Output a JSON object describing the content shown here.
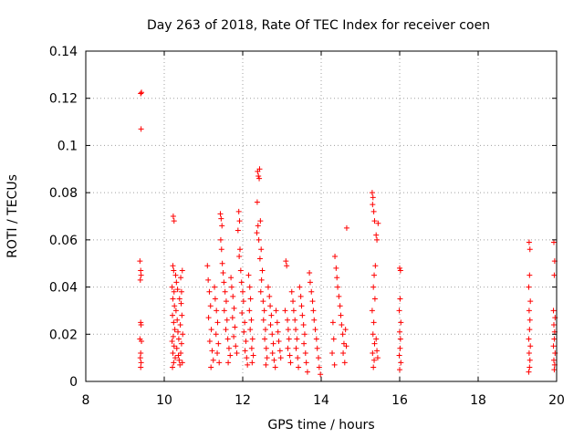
{
  "chart_data": {
    "type": "scatter",
    "title": "Day 263 of 2018, Rate Of TEC Index for receiver coen",
    "xlabel": "GPS time / hours",
    "ylabel": "ROTI / TECUs",
    "xlim": [
      8,
      20
    ],
    "ylim": [
      0,
      0.14
    ],
    "xticks": [
      "8",
      "10",
      "12",
      "14",
      "16",
      "18",
      "20"
    ],
    "yticks": [
      "0",
      "0.02",
      "0.04",
      "0.06",
      "0.08",
      "0.1",
      "0.12",
      "0.14"
    ],
    "grid": true,
    "marker": "+",
    "color": "#ff0000",
    "series": [
      {
        "points": [
          [
            9.4,
            0.122
          ],
          [
            9.42,
            0.1225
          ],
          [
            9.41,
            0.107
          ],
          [
            9.38,
            0.051
          ],
          [
            9.4,
            0.047
          ],
          [
            9.41,
            0.045
          ],
          [
            9.39,
            0.043
          ],
          [
            9.4,
            0.025
          ],
          [
            9.41,
            0.024
          ],
          [
            9.38,
            0.018
          ],
          [
            9.42,
            0.017
          ],
          [
            9.4,
            0.012
          ],
          [
            9.39,
            0.01
          ],
          [
            9.41,
            0.008
          ],
          [
            9.4,
            0.006
          ],
          [
            10.23,
            0.07
          ],
          [
            10.25,
            0.068
          ],
          [
            10.22,
            0.049
          ],
          [
            10.24,
            0.047
          ],
          [
            10.2,
            0.04
          ],
          [
            10.25,
            0.038
          ],
          [
            10.22,
            0.035
          ],
          [
            10.26,
            0.032
          ],
          [
            10.21,
            0.028
          ],
          [
            10.24,
            0.025
          ],
          [
            10.27,
            0.022
          ],
          [
            10.23,
            0.019
          ],
          [
            10.2,
            0.017
          ],
          [
            10.25,
            0.015
          ],
          [
            10.22,
            0.012
          ],
          [
            10.28,
            0.01
          ],
          [
            10.24,
            0.008
          ],
          [
            10.21,
            0.006
          ],
          [
            10.3,
            0.03
          ],
          [
            10.33,
            0.026
          ],
          [
            10.35,
            0.021
          ],
          [
            10.37,
            0.018
          ],
          [
            10.32,
            0.014
          ],
          [
            10.36,
            0.011
          ],
          [
            10.38,
            0.009
          ],
          [
            10.4,
            0.007
          ],
          [
            10.42,
            0.044
          ],
          [
            10.44,
            0.038
          ],
          [
            10.46,
            0.047
          ],
          [
            10.43,
            0.033
          ],
          [
            10.45,
            0.028
          ],
          [
            10.41,
            0.024
          ],
          [
            10.47,
            0.02
          ],
          [
            10.44,
            0.016
          ],
          [
            10.42,
            0.012
          ],
          [
            10.46,
            0.008
          ],
          [
            10.39,
            0.035
          ],
          [
            10.31,
            0.042
          ],
          [
            10.29,
            0.045
          ],
          [
            10.34,
            0.039
          ],
          [
            11.1,
            0.049
          ],
          [
            11.12,
            0.043
          ],
          [
            11.15,
            0.038
          ],
          [
            11.18,
            0.032
          ],
          [
            11.13,
            0.027
          ],
          [
            11.2,
            0.022
          ],
          [
            11.16,
            0.017
          ],
          [
            11.22,
            0.013
          ],
          [
            11.25,
            0.009
          ],
          [
            11.19,
            0.006
          ],
          [
            11.28,
            0.04
          ],
          [
            11.3,
            0.035
          ],
          [
            11.33,
            0.03
          ],
          [
            11.36,
            0.025
          ],
          [
            11.32,
            0.02
          ],
          [
            11.38,
            0.016
          ],
          [
            11.35,
            0.012
          ],
          [
            11.4,
            0.008
          ],
          [
            11.43,
            0.071
          ],
          [
            11.45,
            0.069
          ],
          [
            11.47,
            0.066
          ],
          [
            11.44,
            0.06
          ],
          [
            11.46,
            0.056
          ],
          [
            11.48,
            0.05
          ],
          [
            11.5,
            0.046
          ],
          [
            11.52,
            0.042
          ],
          [
            11.55,
            0.038
          ],
          [
            11.58,
            0.034
          ],
          [
            11.53,
            0.03
          ],
          [
            11.6,
            0.026
          ],
          [
            11.57,
            0.022
          ],
          [
            11.62,
            0.018
          ],
          [
            11.65,
            0.014
          ],
          [
            11.68,
            0.011
          ],
          [
            11.63,
            0.008
          ],
          [
            11.7,
            0.044
          ],
          [
            11.72,
            0.04
          ],
          [
            11.75,
            0.036
          ],
          [
            11.78,
            0.031
          ],
          [
            11.74,
            0.027
          ],
          [
            11.8,
            0.023
          ],
          [
            11.77,
            0.019
          ],
          [
            11.82,
            0.015
          ],
          [
            11.85,
            0.012
          ],
          [
            11.9,
            0.072
          ],
          [
            11.92,
            0.068
          ],
          [
            11.88,
            0.064
          ],
          [
            11.93,
            0.056
          ],
          [
            11.91,
            0.053
          ],
          [
            11.95,
            0.047
          ],
          [
            11.97,
            0.042
          ],
          [
            12.0,
            0.038
          ],
          [
            12.02,
            0.034
          ],
          [
            11.98,
            0.029
          ],
          [
            12.05,
            0.025
          ],
          [
            12.03,
            0.021
          ],
          [
            12.08,
            0.017
          ],
          [
            12.06,
            0.013
          ],
          [
            12.1,
            0.01
          ],
          [
            12.12,
            0.007
          ],
          [
            12.15,
            0.045
          ],
          [
            12.18,
            0.04
          ],
          [
            12.2,
            0.035
          ],
          [
            12.17,
            0.03
          ],
          [
            12.22,
            0.026
          ],
          [
            12.19,
            0.022
          ],
          [
            12.25,
            0.018
          ],
          [
            12.23,
            0.014
          ],
          [
            12.27,
            0.011
          ],
          [
            12.24,
            0.008
          ],
          [
            12.38,
            0.089
          ],
          [
            12.4,
            0.087
          ],
          [
            12.43,
            0.09
          ],
          [
            12.42,
            0.086
          ],
          [
            12.37,
            0.076
          ],
          [
            12.39,
            0.066
          ],
          [
            12.36,
            0.063
          ],
          [
            12.41,
            0.06
          ],
          [
            12.45,
            0.068
          ],
          [
            12.47,
            0.056
          ],
          [
            12.44,
            0.052
          ],
          [
            12.5,
            0.047
          ],
          [
            12.48,
            0.043
          ],
          [
            12.46,
            0.038
          ],
          [
            12.52,
            0.034
          ],
          [
            12.55,
            0.03
          ],
          [
            12.53,
            0.026
          ],
          [
            12.58,
            0.022
          ],
          [
            12.56,
            0.018
          ],
          [
            12.6,
            0.014
          ],
          [
            12.62,
            0.01
          ],
          [
            12.59,
            0.007
          ],
          [
            12.65,
            0.04
          ],
          [
            12.68,
            0.036
          ],
          [
            12.7,
            0.032
          ],
          [
            12.73,
            0.028
          ],
          [
            12.71,
            0.024
          ],
          [
            12.75,
            0.02
          ],
          [
            12.78,
            0.016
          ],
          [
            12.76,
            0.012
          ],
          [
            12.8,
            0.009
          ],
          [
            12.83,
            0.006
          ],
          [
            12.85,
            0.03
          ],
          [
            12.88,
            0.025
          ],
          [
            12.9,
            0.021
          ],
          [
            12.92,
            0.017
          ],
          [
            12.95,
            0.013
          ],
          [
            12.97,
            0.01
          ],
          [
            13.1,
            0.051
          ],
          [
            13.12,
            0.049
          ],
          [
            13.08,
            0.03
          ],
          [
            13.14,
            0.026
          ],
          [
            13.16,
            0.022
          ],
          [
            13.18,
            0.018
          ],
          [
            13.15,
            0.014
          ],
          [
            13.2,
            0.011
          ],
          [
            13.22,
            0.008
          ],
          [
            13.25,
            0.038
          ],
          [
            13.28,
            0.034
          ],
          [
            13.3,
            0.03
          ],
          [
            13.33,
            0.026
          ],
          [
            13.35,
            0.022
          ],
          [
            13.38,
            0.018
          ],
          [
            13.36,
            0.014
          ],
          [
            13.4,
            0.01
          ],
          [
            13.42,
            0.006
          ],
          [
            13.45,
            0.04
          ],
          [
            13.48,
            0.036
          ],
          [
            13.5,
            0.032
          ],
          [
            13.52,
            0.028
          ],
          [
            13.55,
            0.024
          ],
          [
            13.58,
            0.02
          ],
          [
            13.56,
            0.016
          ],
          [
            13.6,
            0.012
          ],
          [
            13.62,
            0.008
          ],
          [
            13.65,
            0.004
          ],
          [
            13.7,
            0.046
          ],
          [
            13.72,
            0.042
          ],
          [
            13.75,
            0.038
          ],
          [
            13.78,
            0.034
          ],
          [
            13.8,
            0.03
          ],
          [
            13.82,
            0.026
          ],
          [
            13.85,
            0.022
          ],
          [
            13.88,
            0.018
          ],
          [
            13.9,
            0.014
          ],
          [
            13.93,
            0.01
          ],
          [
            13.95,
            0.006
          ],
          [
            13.98,
            0.003
          ],
          [
            14.35,
            0.053
          ],
          [
            14.38,
            0.048
          ],
          [
            14.4,
            0.044
          ],
          [
            14.42,
            0.04
          ],
          [
            14.45,
            0.036
          ],
          [
            14.48,
            0.032
          ],
          [
            14.5,
            0.028
          ],
          [
            14.52,
            0.024
          ],
          [
            14.55,
            0.02
          ],
          [
            14.58,
            0.016
          ],
          [
            14.56,
            0.012
          ],
          [
            14.6,
            0.008
          ],
          [
            14.3,
            0.025
          ],
          [
            14.32,
            0.018
          ],
          [
            14.28,
            0.012
          ],
          [
            14.34,
            0.007
          ],
          [
            14.65,
            0.065
          ],
          [
            14.62,
            0.022
          ],
          [
            14.64,
            0.015
          ],
          [
            15.3,
            0.08
          ],
          [
            15.32,
            0.078
          ],
          [
            15.31,
            0.075
          ],
          [
            15.34,
            0.072
          ],
          [
            15.36,
            0.068
          ],
          [
            15.4,
            0.062
          ],
          [
            15.42,
            0.06
          ],
          [
            15.45,
            0.067
          ],
          [
            15.38,
            0.049
          ],
          [
            15.35,
            0.045
          ],
          [
            15.33,
            0.04
          ],
          [
            15.37,
            0.035
          ],
          [
            15.3,
            0.03
          ],
          [
            15.34,
            0.025
          ],
          [
            15.32,
            0.02
          ],
          [
            15.36,
            0.016
          ],
          [
            15.31,
            0.012
          ],
          [
            15.35,
            0.009
          ],
          [
            15.33,
            0.006
          ],
          [
            15.4,
            0.018
          ],
          [
            15.42,
            0.013
          ],
          [
            15.44,
            0.01
          ],
          [
            16.0,
            0.048
          ],
          [
            16.02,
            0.047
          ],
          [
            16.01,
            0.035
          ],
          [
            15.99,
            0.03
          ],
          [
            16.03,
            0.025
          ],
          [
            16.0,
            0.021
          ],
          [
            16.02,
            0.018
          ],
          [
            16.01,
            0.014
          ],
          [
            15.99,
            0.011
          ],
          [
            16.03,
            0.008
          ],
          [
            16.0,
            0.005
          ],
          [
            19.3,
            0.059
          ],
          [
            19.32,
            0.056
          ],
          [
            19.31,
            0.045
          ],
          [
            19.29,
            0.04
          ],
          [
            19.33,
            0.034
          ],
          [
            19.3,
            0.03
          ],
          [
            19.32,
            0.026
          ],
          [
            19.31,
            0.022
          ],
          [
            19.29,
            0.018
          ],
          [
            19.33,
            0.015
          ],
          [
            19.3,
            0.012
          ],
          [
            19.32,
            0.009
          ],
          [
            19.31,
            0.006
          ],
          [
            19.29,
            0.004
          ],
          [
            19.93,
            0.059
          ],
          [
            19.95,
            0.051
          ],
          [
            19.94,
            0.045
          ],
          [
            19.92,
            0.03
          ],
          [
            19.96,
            0.027
          ],
          [
            19.93,
            0.024
          ],
          [
            19.95,
            0.021
          ],
          [
            19.94,
            0.018
          ],
          [
            19.92,
            0.015
          ],
          [
            19.96,
            0.012
          ],
          [
            19.93,
            0.009
          ],
          [
            19.95,
            0.007
          ],
          [
            19.94,
            0.005
          ]
        ]
      }
    ]
  }
}
